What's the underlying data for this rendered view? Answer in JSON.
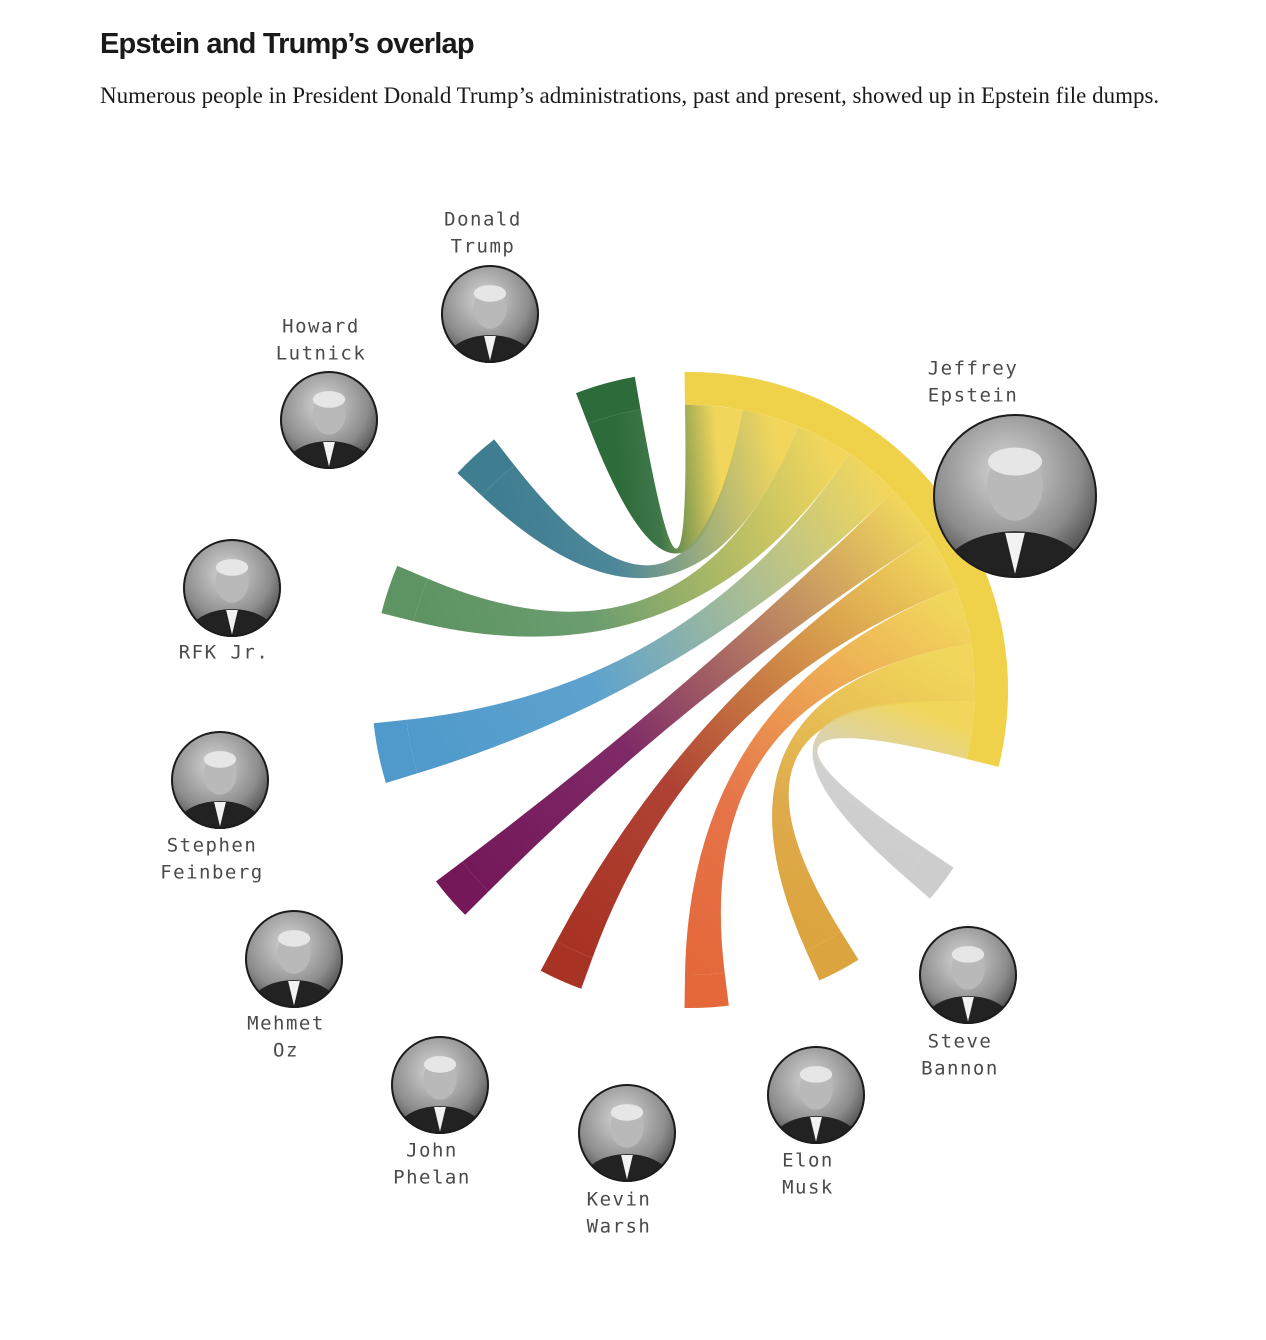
{
  "header": {
    "title": "Epstein and Trump’s overlap",
    "subtitle": "Numerous people in President Donald Trump’s administrations, past and present, showed up in Epstein file dumps."
  },
  "hub": {
    "name": "Jeffrey Epstein",
    "lines": [
      "Jeffrey",
      "Epstein"
    ],
    "color": "#f0d24a"
  },
  "people": [
    {
      "id": "donald-trump",
      "lines": [
        "Donald",
        "Trump"
      ],
      "color": "#2e6b3a"
    },
    {
      "id": "howard-lutnick",
      "lines": [
        "Howard",
        "Lutnick"
      ],
      "color": "#3f7d91"
    },
    {
      "id": "rfk-jr",
      "lines": [
        "RFK Jr."
      ],
      "color": "#5e9463"
    },
    {
      "id": "stephen-feinberg",
      "lines": [
        "Stephen",
        "Feinberg"
      ],
      "color": "#4f9acb"
    },
    {
      "id": "mehmet-oz",
      "lines": [
        "Mehmet",
        "Oz"
      ],
      "color": "#74185a"
    },
    {
      "id": "john-phelan",
      "lines": [
        "John",
        "Phelan"
      ],
      "color": "#a83223"
    },
    {
      "id": "kevin-warsh",
      "lines": [
        "Kevin",
        "Warsh"
      ],
      "color": "#e4683a"
    },
    {
      "id": "elon-musk",
      "lines": [
        "Elon",
        "Musk"
      ],
      "color": "#dca43e"
    },
    {
      "id": "steve-bannon",
      "lines": [
        "Steve",
        "Bannon"
      ],
      "color": "#cdcdcd"
    }
  ]
}
